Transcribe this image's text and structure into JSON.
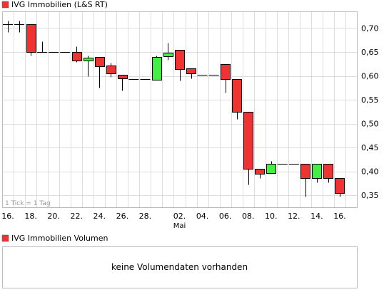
{
  "colors": {
    "up": "#44ee44",
    "down": "#ee3333",
    "grid": "#dddddd",
    "frame": "#bbbbbb",
    "legend_square": "#ee3333"
  },
  "chart_data": {
    "type": "candlestick",
    "title": "IVG Immobilien (L&S RT)",
    "footnote": "1 Tick = 1 Tag",
    "y_range": [
      0.325,
      0.735
    ],
    "y_ticks": [
      0.35,
      0.4,
      0.45,
      0.5,
      0.55,
      0.6,
      0.65,
      0.7
    ],
    "y_tick_labels": [
      "0,35",
      "0,40",
      "0,45",
      "0,50",
      "0,55",
      "0,60",
      "0,65",
      "0,70"
    ],
    "x_tick_labels": [
      "16.",
      "18.",
      "20.",
      "22.",
      "24.",
      "26.",
      "28.",
      "02.",
      "04.",
      "06.",
      "08.",
      "10.",
      "12.",
      "14.",
      "16."
    ],
    "x_sublabel": "Mai",
    "grid": true,
    "candles": [
      {
        "date": "16.04",
        "open": 0.708,
        "high": 0.716,
        "low": 0.692,
        "close": 0.708
      },
      {
        "date": "17.04",
        "open": 0.708,
        "high": 0.716,
        "low": 0.692,
        "close": 0.708
      },
      {
        "date": "18.04",
        "open": 0.708,
        "high": 0.708,
        "low": 0.643,
        "close": 0.65
      },
      {
        "date": "19.04",
        "open": 0.65,
        "high": 0.673,
        "low": 0.65,
        "close": 0.65
      },
      {
        "date": "20.04",
        "open": 0.65,
        "high": 0.65,
        "low": 0.65,
        "close": 0.65
      },
      {
        "date": "21.04",
        "open": 0.65,
        "high": 0.65,
        "low": 0.65,
        "close": 0.65
      },
      {
        "date": "22.04",
        "open": 0.65,
        "high": 0.662,
        "low": 0.629,
        "close": 0.632
      },
      {
        "date": "23.04",
        "open": 0.632,
        "high": 0.642,
        "low": 0.6,
        "close": 0.638
      },
      {
        "date": "24.04",
        "open": 0.64,
        "high": 0.64,
        "low": 0.575,
        "close": 0.62
      },
      {
        "date": "25.04",
        "open": 0.622,
        "high": 0.628,
        "low": 0.598,
        "close": 0.605
      },
      {
        "date": "26.04",
        "open": 0.603,
        "high": 0.603,
        "low": 0.57,
        "close": 0.595
      },
      {
        "date": "27.04",
        "open": 0.593,
        "high": 0.593,
        "low": 0.593,
        "close": 0.593
      },
      {
        "date": "29.04",
        "open": 0.593,
        "high": 0.593,
        "low": 0.593,
        "close": 0.593
      },
      {
        "date": "30.04",
        "open": 0.593,
        "high": 0.643,
        "low": 0.593,
        "close": 0.64
      },
      {
        "date": "01.05",
        "open": 0.64,
        "high": 0.67,
        "low": 0.633,
        "close": 0.648
      },
      {
        "date": "02.05",
        "open": 0.655,
        "high": 0.655,
        "low": 0.59,
        "close": 0.615
      },
      {
        "date": "03.05",
        "open": 0.615,
        "high": 0.615,
        "low": 0.595,
        "close": 0.605
      },
      {
        "date": "04.05",
        "open": 0.603,
        "high": 0.603,
        "low": 0.603,
        "close": 0.603
      },
      {
        "date": "05.05",
        "open": 0.603,
        "high": 0.603,
        "low": 0.603,
        "close": 0.603
      },
      {
        "date": "06.05",
        "open": 0.625,
        "high": 0.625,
        "low": 0.565,
        "close": 0.593
      },
      {
        "date": "07.05",
        "open": 0.593,
        "high": 0.593,
        "low": 0.51,
        "close": 0.525
      },
      {
        "date": "08.05",
        "open": 0.525,
        "high": 0.525,
        "low": 0.372,
        "close": 0.406
      },
      {
        "date": "09.05",
        "open": 0.406,
        "high": 0.406,
        "low": 0.386,
        "close": 0.396
      },
      {
        "date": "10.05",
        "open": 0.396,
        "high": 0.422,
        "low": 0.396,
        "close": 0.416
      },
      {
        "date": "11.05",
        "open": 0.416,
        "high": 0.416,
        "low": 0.416,
        "close": 0.416
      },
      {
        "date": "12.05",
        "open": 0.416,
        "high": 0.416,
        "low": 0.416,
        "close": 0.416
      },
      {
        "date": "13.05",
        "open": 0.416,
        "high": 0.416,
        "low": 0.347,
        "close": 0.386
      },
      {
        "date": "14.05",
        "open": 0.386,
        "high": 0.416,
        "low": 0.377,
        "close": 0.416
      },
      {
        "date": "15.05",
        "open": 0.416,
        "high": 0.416,
        "low": 0.377,
        "close": 0.386
      },
      {
        "date": "16.05",
        "open": 0.386,
        "high": 0.386,
        "low": 0.347,
        "close": 0.355
      }
    ]
  },
  "volume_panel": {
    "title": "IVG Immobilien Volumen",
    "empty_message": "keine Volumendaten vorhanden"
  }
}
